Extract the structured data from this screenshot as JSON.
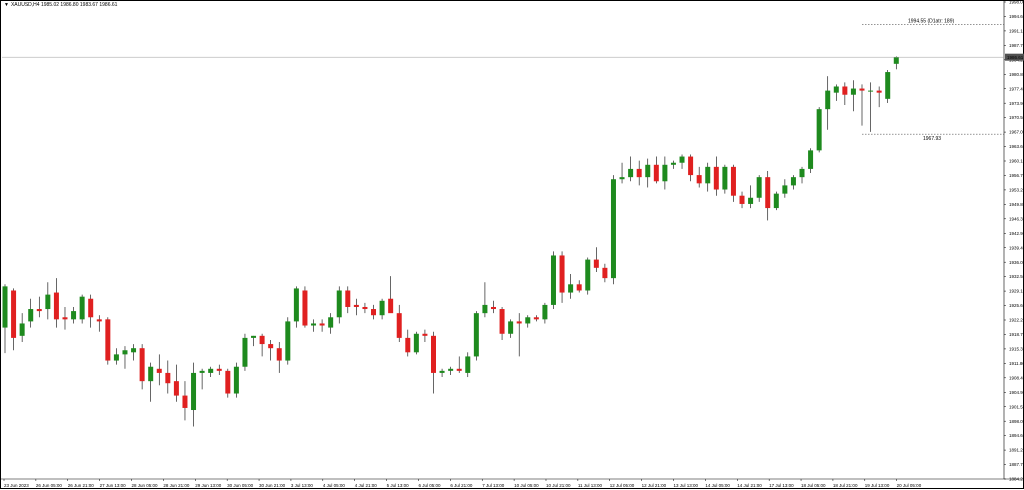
{
  "header": {
    "symbol_line": "XAUUSD,H4  1985.02 1986.80 1983.67 1986.61",
    "triangle_icon": "triangle-down-icon"
  },
  "colors": {
    "bull": "#1e8a1e",
    "bear": "#e02020",
    "wick": "#000000",
    "background": "#ffffff",
    "grid": "#000000",
    "price_tag_bg": "#505050"
  },
  "current_price_tag": "1986.61",
  "annotations": {
    "upper_label": "1994.55 (D1atr: 189)",
    "upper_value": 1994.55,
    "lower_label": "1967.93",
    "lower_value": 1967.93
  },
  "chart_data": {
    "type": "candlestick",
    "symbol": "XAUUSD",
    "timeframe": "H4",
    "ylim": [
      1884.26,
      2000.0
    ],
    "y_ticks": [
      "1998.00",
      "1994.60",
      "1991.10",
      "1987.70",
      "1984.20",
      "1980.80",
      "1977.40",
      "1973.90",
      "1970.50",
      "1967.00",
      "1963.60",
      "1960.10",
      "1956.70",
      "1953.20",
      "1949.80",
      "1946.30",
      "1942.90",
      "1939.40",
      "1936.00",
      "1932.50",
      "1929.10",
      "1925.60",
      "1922.20",
      "1918.70",
      "1915.30",
      "1911.80",
      "1908.40",
      "1904.90",
      "1901.50",
      "1898.00",
      "1894.60",
      "1891.20",
      "1887.70",
      "1884.26"
    ],
    "x_ticks": [
      "23 Jun 2023",
      "26 Jun 05:00",
      "26 Jun 21:00",
      "27 Jun 13:00",
      "28 Jun 05:00",
      "28 Jun 21:00",
      "29 Jun 13:00",
      "30 Jun 05:00",
      "30 Jun 21:00",
      "3 Jul 13:00",
      "4 Jul 05:00",
      "4 Jul 21:00",
      "5 Jul 13:00",
      "6 Jul 05:00",
      "6 Jul 21:00",
      "7 Jul 13:00",
      "10 Jul 05:00",
      "10 Jul 21:00",
      "11 Jul 13:00",
      "12 Jul 05:00",
      "12 Jul 21:00",
      "13 Jul 13:00",
      "14 Jul 05:00",
      "14 Jul 21:00",
      "17 Jul 13:00",
      "18 Jul 05:00",
      "18 Jul 21:00",
      "19 Jul 13:00",
      "20 Jul 05:00"
    ],
    "candles": [
      {
        "o": 1921.0,
        "h": 1931.5,
        "l": 1914.8,
        "c": 1931.0
      },
      {
        "o": 1930.0,
        "h": 1930.5,
        "l": 1915.5,
        "c": 1918.5
      },
      {
        "o": 1919.0,
        "h": 1924.5,
        "l": 1917.5,
        "c": 1922.0
      },
      {
        "o": 1922.5,
        "h": 1928.0,
        "l": 1921.0,
        "c": 1925.5
      },
      {
        "o": 1925.5,
        "h": 1928.5,
        "l": 1923.5,
        "c": 1925.0
      },
      {
        "o": 1925.5,
        "h": 1932.0,
        "l": 1923.0,
        "c": 1929.0
      },
      {
        "o": 1929.5,
        "h": 1933.0,
        "l": 1921.0,
        "c": 1923.0
      },
      {
        "o": 1923.5,
        "h": 1926.0,
        "l": 1920.5,
        "c": 1923.0
      },
      {
        "o": 1923.0,
        "h": 1926.0,
        "l": 1922.0,
        "c": 1925.0
      },
      {
        "o": 1923.0,
        "h": 1929.0,
        "l": 1922.0,
        "c": 1928.5
      },
      {
        "o": 1928.0,
        "h": 1929.0,
        "l": 1921.0,
        "c": 1923.5
      },
      {
        "o": 1923.0,
        "h": 1924.0,
        "l": 1920.0,
        "c": 1922.5
      },
      {
        "o": 1923.0,
        "h": 1923.5,
        "l": 1912.0,
        "c": 1913.0
      },
      {
        "o": 1913.0,
        "h": 1916.0,
        "l": 1912.0,
        "c": 1914.5
      },
      {
        "o": 1914.5,
        "h": 1916.5,
        "l": 1911.0,
        "c": 1915.5
      },
      {
        "o": 1915.0,
        "h": 1917.0,
        "l": 1913.0,
        "c": 1916.0
      },
      {
        "o": 1916.0,
        "h": 1917.0,
        "l": 1906.0,
        "c": 1908.0
      },
      {
        "o": 1908.0,
        "h": 1912.5,
        "l": 1903.0,
        "c": 1911.5
      },
      {
        "o": 1911.0,
        "h": 1914.5,
        "l": 1907.0,
        "c": 1910.0
      },
      {
        "o": 1910.0,
        "h": 1913.0,
        "l": 1905.0,
        "c": 1907.5
      },
      {
        "o": 1908.0,
        "h": 1912.0,
        "l": 1903.0,
        "c": 1904.5
      },
      {
        "o": 1904.5,
        "h": 1908.0,
        "l": 1898.5,
        "c": 1901.5
      },
      {
        "o": 1901.0,
        "h": 1912.5,
        "l": 1897.0,
        "c": 1910.0
      },
      {
        "o": 1910.0,
        "h": 1911.0,
        "l": 1906.0,
        "c": 1910.5
      },
      {
        "o": 1910.0,
        "h": 1911.5,
        "l": 1909.0,
        "c": 1911.0
      },
      {
        "o": 1911.0,
        "h": 1912.0,
        "l": 1909.5,
        "c": 1910.5
      },
      {
        "o": 1910.5,
        "h": 1911.0,
        "l": 1904.0,
        "c": 1905.0
      },
      {
        "o": 1905.0,
        "h": 1912.5,
        "l": 1904.0,
        "c": 1911.5
      },
      {
        "o": 1911.5,
        "h": 1919.5,
        "l": 1910.5,
        "c": 1918.5
      },
      {
        "o": 1918.5,
        "h": 1919.0,
        "l": 1916.5,
        "c": 1919.0
      },
      {
        "o": 1919.0,
        "h": 1919.5,
        "l": 1914.0,
        "c": 1917.0
      },
      {
        "o": 1917.0,
        "h": 1918.0,
        "l": 1913.0,
        "c": 1916.0
      },
      {
        "o": 1916.0,
        "h": 1917.5,
        "l": 1910.0,
        "c": 1913.0
      },
      {
        "o": 1913.0,
        "h": 1923.5,
        "l": 1912.0,
        "c": 1922.5
      },
      {
        "o": 1922.5,
        "h": 1931.0,
        "l": 1921.0,
        "c": 1930.5
      },
      {
        "o": 1930.0,
        "h": 1931.0,
        "l": 1921.0,
        "c": 1921.5
      },
      {
        "o": 1921.5,
        "h": 1923.0,
        "l": 1920.0,
        "c": 1922.0
      },
      {
        "o": 1922.0,
        "h": 1923.0,
        "l": 1920.0,
        "c": 1921.5
      },
      {
        "o": 1921.0,
        "h": 1924.5,
        "l": 1919.5,
        "c": 1923.5
      },
      {
        "o": 1923.5,
        "h": 1931.0,
        "l": 1922.0,
        "c": 1930.0
      },
      {
        "o": 1930.0,
        "h": 1931.0,
        "l": 1924.5,
        "c": 1926.0
      },
      {
        "o": 1926.5,
        "h": 1928.0,
        "l": 1924.0,
        "c": 1926.0
      },
      {
        "o": 1926.0,
        "h": 1927.0,
        "l": 1924.5,
        "c": 1925.5
      },
      {
        "o": 1925.5,
        "h": 1926.5,
        "l": 1923.0,
        "c": 1924.0
      },
      {
        "o": 1924.0,
        "h": 1928.0,
        "l": 1923.0,
        "c": 1927.5
      },
      {
        "o": 1928.0,
        "h": 1933.5,
        "l": 1925.0,
        "c": 1924.5
      },
      {
        "o": 1924.5,
        "h": 1926.5,
        "l": 1917.5,
        "c": 1918.5
      },
      {
        "o": 1918.5,
        "h": 1920.5,
        "l": 1914.0,
        "c": 1915.0
      },
      {
        "o": 1915.0,
        "h": 1920.0,
        "l": 1914.5,
        "c": 1919.5
      },
      {
        "o": 1919.5,
        "h": 1920.5,
        "l": 1917.5,
        "c": 1919.0
      },
      {
        "o": 1919.0,
        "h": 1920.0,
        "l": 1905.0,
        "c": 1910.0
      },
      {
        "o": 1910.0,
        "h": 1911.0,
        "l": 1909.0,
        "c": 1910.5
      },
      {
        "o": 1910.5,
        "h": 1911.5,
        "l": 1909.5,
        "c": 1911.0
      },
      {
        "o": 1911.0,
        "h": 1914.0,
        "l": 1910.0,
        "c": 1910.5
      },
      {
        "o": 1910.0,
        "h": 1915.0,
        "l": 1909.0,
        "c": 1914.0
      },
      {
        "o": 1914.0,
        "h": 1925.0,
        "l": 1913.0,
        "c": 1924.5
      },
      {
        "o": 1924.5,
        "h": 1932.0,
        "l": 1923.5,
        "c": 1926.5
      },
      {
        "o": 1926.0,
        "h": 1927.5,
        "l": 1924.5,
        "c": 1925.5
      },
      {
        "o": 1925.5,
        "h": 1926.0,
        "l": 1918.0,
        "c": 1919.5
      },
      {
        "o": 1919.5,
        "h": 1923.0,
        "l": 1918.5,
        "c": 1922.5
      },
      {
        "o": 1922.5,
        "h": 1924.5,
        "l": 1914.0,
        "c": 1922.0
      },
      {
        "o": 1922.0,
        "h": 1924.0,
        "l": 1921.0,
        "c": 1923.5
      },
      {
        "o": 1923.5,
        "h": 1924.0,
        "l": 1922.5,
        "c": 1923.0
      },
      {
        "o": 1923.0,
        "h": 1927.0,
        "l": 1922.0,
        "c": 1926.5
      },
      {
        "o": 1926.5,
        "h": 1939.5,
        "l": 1925.5,
        "c": 1938.5
      },
      {
        "o": 1938.5,
        "h": 1939.5,
        "l": 1927.0,
        "c": 1929.5
      },
      {
        "o": 1929.5,
        "h": 1934.0,
        "l": 1928.0,
        "c": 1931.5
      },
      {
        "o": 1931.5,
        "h": 1932.5,
        "l": 1929.5,
        "c": 1930.0
      },
      {
        "o": 1930.0,
        "h": 1938.0,
        "l": 1929.0,
        "c": 1937.5
      },
      {
        "o": 1937.5,
        "h": 1940.5,
        "l": 1934.5,
        "c": 1935.5
      },
      {
        "o": 1935.5,
        "h": 1936.5,
        "l": 1932.0,
        "c": 1933.0
      },
      {
        "o": 1933.0,
        "h": 1958.0,
        "l": 1931.5,
        "c": 1957.0
      },
      {
        "o": 1957.0,
        "h": 1961.0,
        "l": 1956.0,
        "c": 1957.5
      },
      {
        "o": 1957.5,
        "h": 1962.5,
        "l": 1956.5,
        "c": 1959.5
      },
      {
        "o": 1959.5,
        "h": 1961.5,
        "l": 1955.5,
        "c": 1957.5
      },
      {
        "o": 1957.5,
        "h": 1962.0,
        "l": 1955.0,
        "c": 1960.5
      },
      {
        "o": 1960.5,
        "h": 1962.5,
        "l": 1956.0,
        "c": 1956.5
      },
      {
        "o": 1956.5,
        "h": 1962.5,
        "l": 1954.5,
        "c": 1960.5
      },
      {
        "o": 1960.5,
        "h": 1961.5,
        "l": 1959.5,
        "c": 1961.0
      },
      {
        "o": 1961.0,
        "h": 1963.0,
        "l": 1959.5,
        "c": 1962.5
      },
      {
        "o": 1962.5,
        "h": 1963.0,
        "l": 1956.5,
        "c": 1958.0
      },
      {
        "o": 1958.0,
        "h": 1960.0,
        "l": 1955.0,
        "c": 1956.0
      },
      {
        "o": 1956.0,
        "h": 1961.0,
        "l": 1954.0,
        "c": 1960.0
      },
      {
        "o": 1960.0,
        "h": 1962.5,
        "l": 1953.0,
        "c": 1954.5
      },
      {
        "o": 1954.5,
        "h": 1960.5,
        "l": 1953.5,
        "c": 1960.0
      },
      {
        "o": 1960.0,
        "h": 1960.5,
        "l": 1951.5,
        "c": 1953.0
      },
      {
        "o": 1953.0,
        "h": 1954.0,
        "l": 1950.0,
        "c": 1951.0
      },
      {
        "o": 1951.0,
        "h": 1955.5,
        "l": 1950.0,
        "c": 1952.5
      },
      {
        "o": 1952.5,
        "h": 1958.0,
        "l": 1951.5,
        "c": 1957.5
      },
      {
        "o": 1957.5,
        "h": 1959.0,
        "l": 1947.0,
        "c": 1950.0
      },
      {
        "o": 1950.0,
        "h": 1954.0,
        "l": 1949.5,
        "c": 1953.5
      },
      {
        "o": 1953.5,
        "h": 1957.0,
        "l": 1952.5,
        "c": 1955.5
      },
      {
        "o": 1955.5,
        "h": 1958.0,
        "l": 1954.5,
        "c": 1957.5
      },
      {
        "o": 1957.5,
        "h": 1960.0,
        "l": 1956.0,
        "c": 1959.5
      },
      {
        "o": 1959.5,
        "h": 1964.5,
        "l": 1958.5,
        "c": 1964.0
      },
      {
        "o": 1964.0,
        "h": 1974.5,
        "l": 1963.5,
        "c": 1974.0
      },
      {
        "o": 1974.0,
        "h": 1982.0,
        "l": 1969.0,
        "c": 1978.5
      },
      {
        "o": 1978.0,
        "h": 1980.0,
        "l": 1976.0,
        "c": 1979.5
      },
      {
        "o": 1979.5,
        "h": 1980.5,
        "l": 1975.0,
        "c": 1977.5
      },
      {
        "o": 1977.5,
        "h": 1981.0,
        "l": 1973.5,
        "c": 1979.0
      },
      {
        "o": 1979.0,
        "h": 1980.0,
        "l": 1970.0,
        "c": 1978.5
      },
      {
        "o": 1978.5,
        "h": 1980.5,
        "l": 1968.5,
        "c": 1978.5
      },
      {
        "o": 1978.5,
        "h": 1979.5,
        "l": 1974.5,
        "c": 1978.0
      },
      {
        "o": 1976.5,
        "h": 1983.5,
        "l": 1975.5,
        "c": 1983.0
      },
      {
        "o": 1985.0,
        "h": 1986.8,
        "l": 1983.67,
        "c": 1986.61
      }
    ]
  }
}
